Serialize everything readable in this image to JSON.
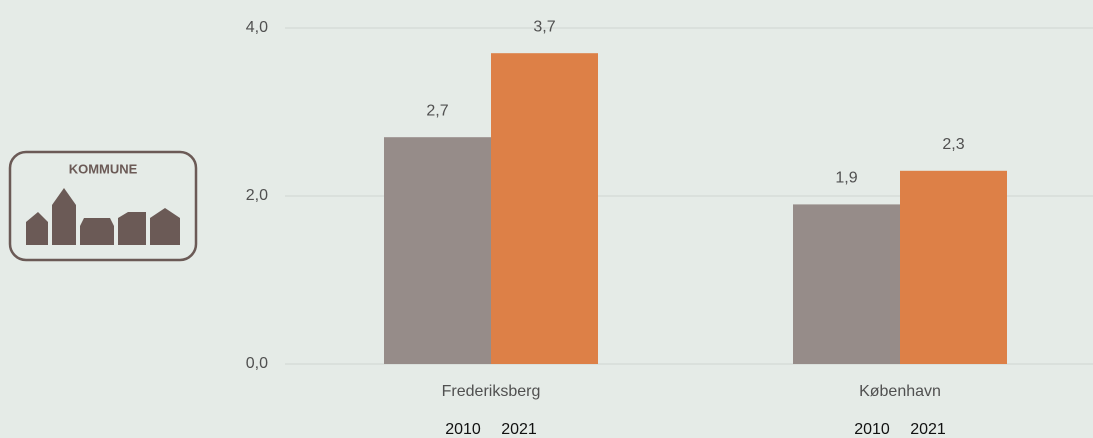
{
  "chart_data": {
    "type": "bar",
    "icon_label": "KOMMUNE",
    "categories": [
      "Frederiksberg",
      "København"
    ],
    "series": [
      {
        "name": "2010",
        "color": "#968c89",
        "values": [
          2.7,
          1.9
        ],
        "value_labels": [
          "2,7",
          "1,9"
        ]
      },
      {
        "name": "2021",
        "color": "#dd8047",
        "values": [
          3.7,
          2.3
        ],
        "value_labels": [
          "3,7",
          "2,3"
        ]
      }
    ],
    "ylim": [
      0,
      4
    ],
    "yticks": [
      {
        "value": 0,
        "label": "0,0"
      },
      {
        "value": 2,
        "label": "2,0"
      },
      {
        "value": 4,
        "label": "4,0"
      }
    ],
    "grid": true
  }
}
